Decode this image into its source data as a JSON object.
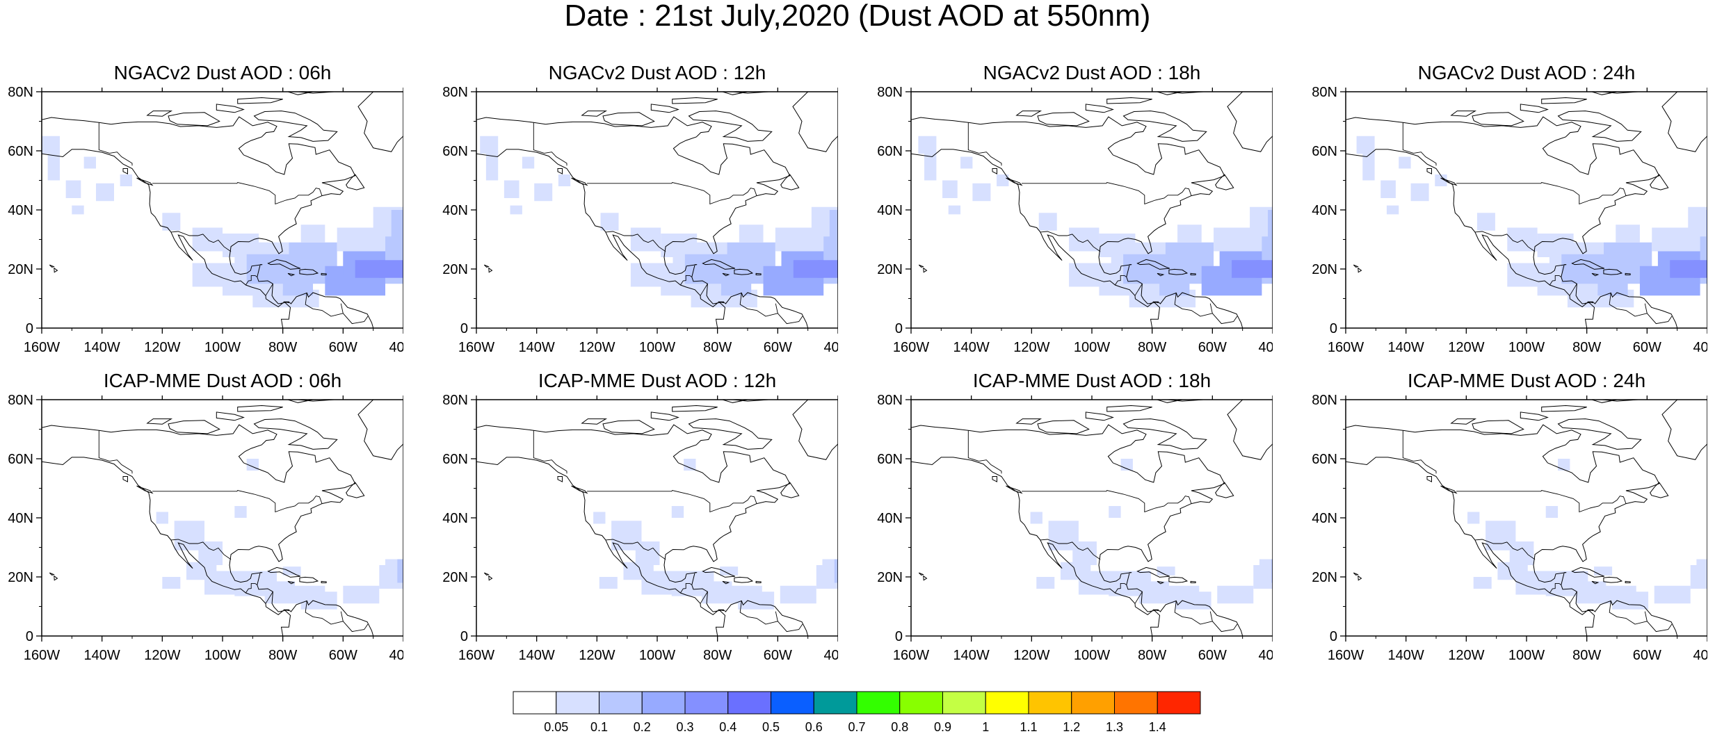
{
  "title": "Date : 21st July,2020 (Dust AOD at 550nm)",
  "axes": {
    "lat_labels": [
      "0",
      "20N",
      "40N",
      "60N",
      "80N"
    ],
    "lon_labels": [
      "160W",
      "140W",
      "120W",
      "100W",
      "80W",
      "60W",
      "40W"
    ],
    "lat_range": [
      0,
      80
    ],
    "lon_range": [
      -160,
      -40
    ]
  },
  "panels": [
    {
      "title": "NGACv2 Dust AOD : 06h"
    },
    {
      "title": "NGACv2 Dust AOD : 12h"
    },
    {
      "title": "NGACv2 Dust AOD : 18h"
    },
    {
      "title": "NGACv2 Dust AOD : 24h"
    },
    {
      "title": "ICAP-MME Dust AOD : 06h"
    },
    {
      "title": "ICAP-MME Dust AOD : 12h"
    },
    {
      "title": "ICAP-MME Dust AOD : 18h"
    },
    {
      "title": "ICAP-MME Dust AOD : 24h"
    }
  ],
  "colorbar": {
    "labels": [
      "0.05",
      "0.1",
      "0.2",
      "0.3",
      "0.4",
      "0.5",
      "0.6",
      "0.7",
      "0.8",
      "0.9",
      "1",
      "1.1",
      "1.2",
      "1.3",
      "1.4"
    ],
    "colors": [
      "#ffffff",
      "#d7e0ff",
      "#b8c8ff",
      "#97aaff",
      "#8490ff",
      "#6a70ff",
      "#0a5fff",
      "#009a9a",
      "#33ff00",
      "#88ff00",
      "#c4ff44",
      "#ffff00",
      "#ffc400",
      "#ffa000",
      "#ff7400",
      "#ff2600"
    ]
  }
}
